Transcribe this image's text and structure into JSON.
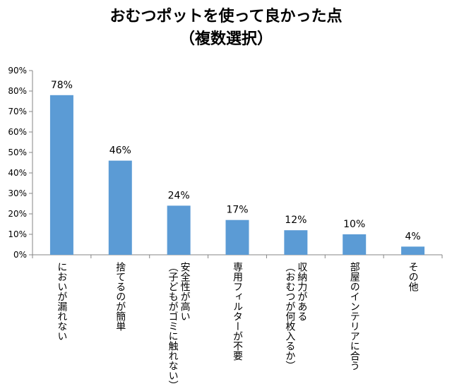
{
  "chart_data": {
    "type": "bar",
    "title": [
      "おむつポットを使って良かった点",
      "（複数選択）"
    ],
    "categories": [
      [
        "においが漏れない"
      ],
      [
        "捨てるのが簡単"
      ],
      [
        "安全性が高い",
        "（子どもがゴミに触れない）"
      ],
      [
        "専用フィルターが不要"
      ],
      [
        "収納力がある",
        "（おむつが何枚入るか）"
      ],
      [
        "部屋のインテリアに合う"
      ],
      [
        "その他"
      ]
    ],
    "values": [
      78,
      46,
      24,
      17,
      12,
      10,
      4
    ],
    "data_labels": [
      "78%",
      "46%",
      "24%",
      "17%",
      "12%",
      "10%",
      "4%"
    ],
    "yticks": [
      "0%",
      "10%",
      "20%",
      "30%",
      "40%",
      "50%",
      "60%",
      "70%",
      "80%",
      "90%"
    ],
    "ylim": [
      0,
      90
    ],
    "grid": false,
    "bar_color": "#5b9bd5"
  }
}
